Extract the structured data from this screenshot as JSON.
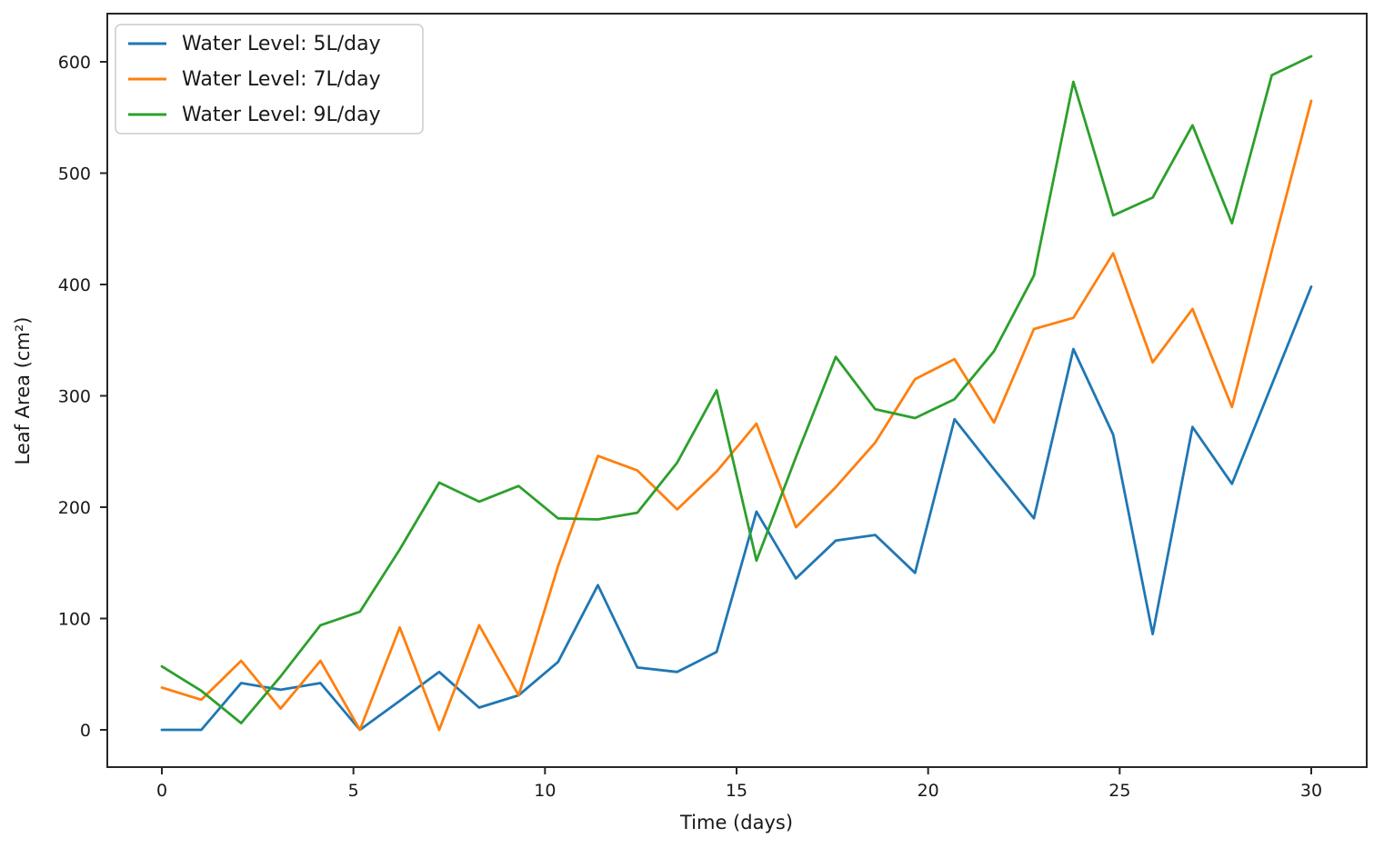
{
  "chart_data": {
    "type": "line",
    "title": "",
    "xlabel": "Time (days)",
    "ylabel": "Leaf Area (cm²)",
    "x": [
      0,
      1.03,
      2.07,
      3.1,
      4.14,
      5.17,
      6.21,
      7.24,
      8.28,
      9.31,
      10.34,
      11.38,
      12.41,
      13.45,
      14.48,
      15.52,
      16.55,
      17.59,
      18.62,
      19.66,
      20.69,
      21.72,
      22.76,
      23.79,
      24.83,
      25.86,
      26.9,
      27.93,
      28.97,
      30
    ],
    "xticks": [
      0,
      5,
      10,
      15,
      20,
      25,
      30
    ],
    "yticks": [
      0,
      100,
      200,
      300,
      400,
      500,
      600
    ],
    "xlim": [
      -1.4,
      31.4
    ],
    "ylim": [
      -33,
      643
    ],
    "grid": false,
    "legend_position": "upper left",
    "series": [
      {
        "name": "Water Level: 5L/day",
        "color": "#1f77b4",
        "values": [
          0,
          0,
          42,
          36,
          42,
          0,
          26,
          52,
          20,
          31,
          61,
          130,
          56,
          52,
          70,
          196,
          136,
          170,
          175,
          141,
          279,
          234,
          190,
          342,
          265,
          86,
          272,
          221,
          310,
          398
        ]
      },
      {
        "name": "Water Level: 7L/day",
        "color": "#ff7f0e",
        "values": [
          38,
          27,
          62,
          19,
          62,
          0,
          92,
          0,
          94,
          31,
          147,
          246,
          233,
          198,
          232,
          275,
          182,
          218,
          258,
          315,
          333,
          276,
          360,
          370,
          428,
          330,
          378,
          290,
          430,
          565
        ]
      },
      {
        "name": "Water Level: 9L/day",
        "color": "#2ca02c",
        "values": [
          57,
          35,
          6,
          48,
          94,
          106,
          162,
          222,
          205,
          219,
          190,
          189,
          195,
          240,
          305,
          152,
          245,
          335,
          288,
          280,
          297,
          340,
          408,
          582,
          462,
          478,
          543,
          455,
          588,
          605
        ]
      }
    ]
  }
}
